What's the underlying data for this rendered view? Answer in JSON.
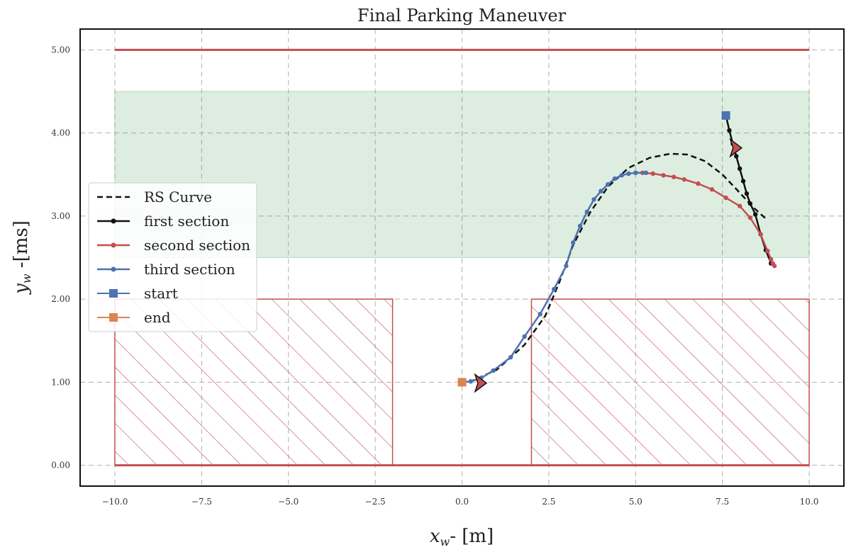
{
  "chart_data": {
    "type": "line",
    "title": "Final Parking Maneuver",
    "xlabel": "x_w- [m]",
    "ylabel": "y_w -[ms]",
    "xlim": [
      -11.0,
      11.0
    ],
    "ylim": [
      -0.25,
      5.25
    ],
    "xticks": [
      -10.0,
      -7.5,
      -5.0,
      -2.5,
      0.0,
      2.5,
      5.0,
      7.5,
      10.0
    ],
    "xtick_labels": [
      "−10.0",
      "−7.5",
      "−5.0",
      "−2.5",
      "0.0",
      "2.5",
      "5.0",
      "7.5",
      "10.0"
    ],
    "yticks": [
      0.0,
      1.0,
      2.0,
      3.0,
      4.0,
      5.0
    ],
    "ytick_labels": [
      "0.00",
      "1.00",
      "2.00",
      "3.00",
      "4.00",
      "5.00"
    ],
    "grid": true,
    "legend_position": "center-left",
    "regions": {
      "top_boundary": {
        "x": [
          -10,
          10
        ],
        "y": 5.0,
        "color": "#c44e52"
      },
      "bottom_boundary": {
        "x": [
          -10,
          10
        ],
        "y": 0.0,
        "color": "#c44e52"
      },
      "free_zone": {
        "x": [
          -10,
          10
        ],
        "y": [
          2.5,
          4.5
        ],
        "color": "#55a868"
      },
      "obstacles": [
        {
          "x": [
            -10,
            -2
          ],
          "y": [
            0,
            2
          ],
          "color": "#c44e52"
        },
        {
          "x": [
            2,
            10
          ],
          "y": [
            0,
            2
          ],
          "color": "#c44e52"
        }
      ]
    },
    "series": [
      {
        "name": "RS Curve",
        "color": "#111111",
        "style": "dashed",
        "x": [
          0.2,
          1.0,
          1.8,
          2.4,
          2.8,
          3.2,
          3.7,
          4.2,
          4.8,
          5.4,
          6.0,
          6.5,
          7.0,
          7.5,
          8.0,
          8.4,
          8.8
        ],
        "y": [
          1.0,
          1.15,
          1.45,
          1.8,
          2.2,
          2.65,
          3.05,
          3.35,
          3.58,
          3.7,
          3.75,
          3.74,
          3.66,
          3.5,
          3.28,
          3.1,
          2.95
        ]
      },
      {
        "name": "first section",
        "color": "#111111",
        "style": "solid-markers",
        "x": [
          7.6,
          7.7,
          7.8,
          7.9,
          8.0,
          8.1,
          8.2,
          8.3,
          8.45,
          8.6,
          8.75,
          8.9
        ],
        "y": [
          4.21,
          4.03,
          3.87,
          3.72,
          3.57,
          3.42,
          3.27,
          3.15,
          3.02,
          2.78,
          2.59,
          2.43
        ]
      },
      {
        "name": "second section",
        "color": "#c44e52",
        "style": "solid-markers",
        "x": [
          9.0,
          8.95,
          8.9,
          8.8,
          8.6,
          8.3,
          8.0,
          7.6,
          7.2,
          6.8,
          6.4,
          6.1,
          5.8,
          5.5,
          5.2,
          5.0
        ],
        "y": [
          2.4,
          2.43,
          2.48,
          2.58,
          2.78,
          2.98,
          3.12,
          3.22,
          3.32,
          3.39,
          3.44,
          3.47,
          3.49,
          3.51,
          3.52,
          3.52
        ]
      },
      {
        "name": "third section",
        "color": "#4c72b0",
        "style": "solid-markers",
        "x": [
          5.3,
          5.0,
          4.8,
          4.6,
          4.4,
          4.2,
          4.0,
          3.8,
          3.6,
          3.4,
          3.2,
          3.0,
          2.65,
          2.25,
          1.8,
          1.4,
          0.9,
          0.55,
          0.25,
          0.0
        ],
        "y": [
          3.52,
          3.52,
          3.51,
          3.49,
          3.45,
          3.38,
          3.3,
          3.2,
          3.05,
          2.88,
          2.68,
          2.4,
          2.12,
          1.82,
          1.55,
          1.3,
          1.14,
          1.05,
          1.01,
          1.0
        ]
      },
      {
        "name": "start",
        "color": "#4c72b0",
        "style": "square-marker",
        "x": [
          7.6
        ],
        "y": [
          4.21
        ]
      },
      {
        "name": "end",
        "color": "#dd8452",
        "style": "square-marker",
        "x": [
          0.0
        ],
        "y": [
          1.0
        ]
      }
    ],
    "annotations": [
      {
        "type": "arrow-head",
        "x": 7.85,
        "y": 3.82,
        "color": "#c44e52"
      },
      {
        "type": "arrow-head",
        "x": 0.5,
        "y": 0.99,
        "color": "#c44e52"
      }
    ]
  }
}
